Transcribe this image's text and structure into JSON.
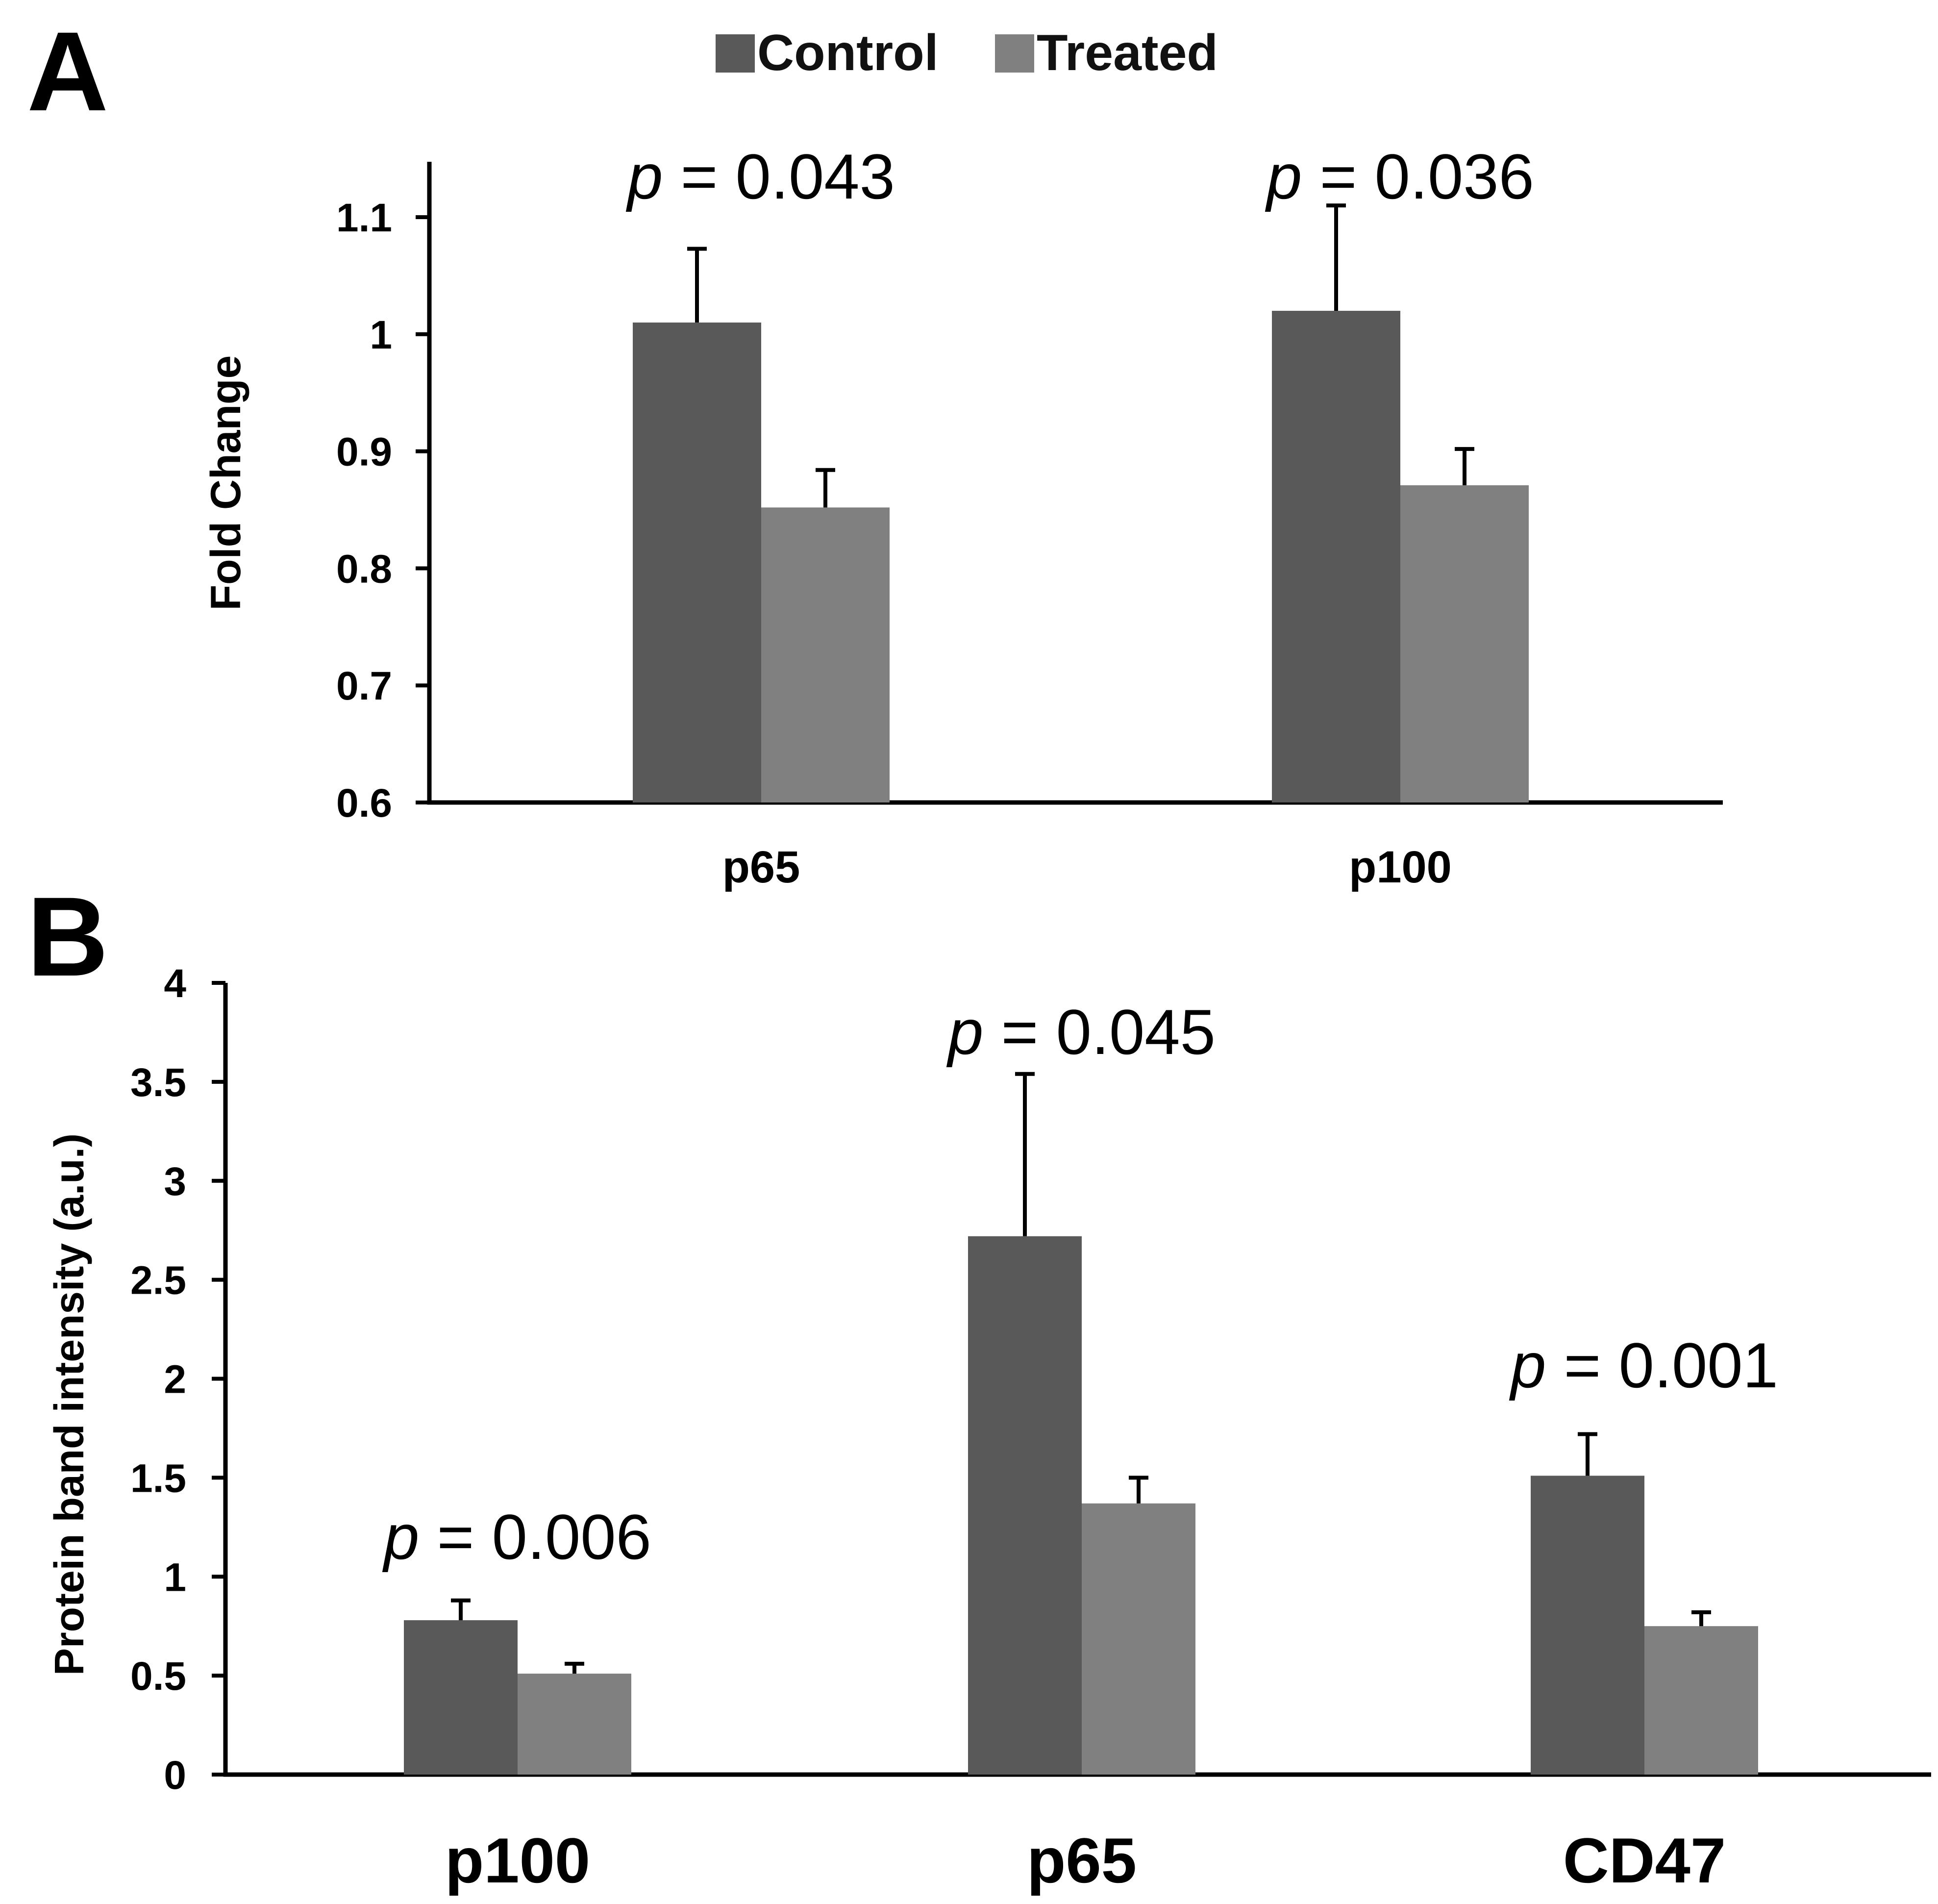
{
  "legend": {
    "series": [
      {
        "name": "Control",
        "color": "#595959"
      },
      {
        "name": "Treated",
        "color": "#808080"
      }
    ]
  },
  "chart_data": [
    {
      "panel": "A",
      "type": "bar",
      "title": "",
      "xlabel": "",
      "ylabel": "Fold Change",
      "ylim": [
        0.6,
        1.15
      ],
      "yticks": [
        0.6,
        0.7,
        0.8,
        0.9,
        1,
        1.1
      ],
      "ytick_labels": [
        "0.6",
        "0.7",
        "0.8",
        "0.9",
        "1",
        "1.1"
      ],
      "categories": [
        "p65",
        "p100"
      ],
      "series": [
        {
          "name": "Control",
          "color": "#595959",
          "values": [
            1.01,
            1.02
          ],
          "errors": [
            0.063,
            0.09
          ]
        },
        {
          "name": "Treated",
          "color": "#808080",
          "values": [
            0.852,
            0.871
          ],
          "errors": [
            0.032,
            0.031
          ]
        }
      ],
      "annotations": [
        {
          "category": "p65",
          "label": "p",
          "value": "= 0.043"
        },
        {
          "category": "p100",
          "label": "p",
          "value": "= 0.036"
        }
      ]
    },
    {
      "panel": "B",
      "type": "bar",
      "title": "",
      "xlabel": "",
      "ylabel": "Protein band intensity (a.u.)",
      "ylim": [
        0,
        4
      ],
      "yticks": [
        0,
        0.5,
        1,
        1.5,
        2,
        2.5,
        3,
        3.5,
        4
      ],
      "ytick_labels": [
        "0",
        "0.5",
        "1",
        "1.5",
        "2",
        "2.5",
        "3",
        "3.5",
        "4"
      ],
      "categories": [
        "p100",
        "p65",
        "CD47"
      ],
      "series": [
        {
          "name": "Control",
          "color": "#595959",
          "values": [
            0.78,
            2.72,
            1.51
          ],
          "errors": [
            0.1,
            0.82,
            0.21
          ]
        },
        {
          "name": "Treated",
          "color": "#808080",
          "values": [
            0.51,
            1.37,
            0.75
          ],
          "errors": [
            0.05,
            0.13,
            0.07
          ]
        }
      ],
      "annotations": [
        {
          "category": "p100",
          "label": "p",
          "value": "= 0.006"
        },
        {
          "category": "p65",
          "label": "p",
          "value": "= 0.045"
        },
        {
          "category": "CD47",
          "label": "p",
          "value": "= 0.001"
        }
      ]
    }
  ]
}
